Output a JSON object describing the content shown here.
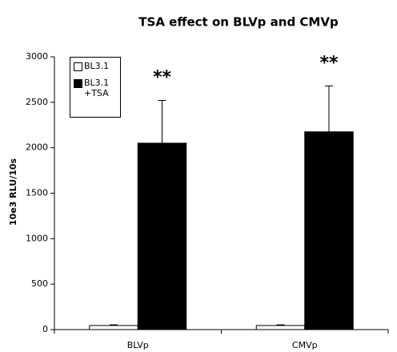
{
  "chart_data": {
    "type": "bar",
    "title": "TSA effect on BLVp and CMVp",
    "y_label": "10e3 RLU/10s",
    "categories": [
      "BLVp",
      "CMVp"
    ],
    "series": [
      {
        "name": "BL3.1",
        "color": "#ffffff",
        "values": [
          45,
          45
        ],
        "errors": [
          8,
          8
        ]
      },
      {
        "name": "BL3.1 +TSA",
        "color": "#000000",
        "values": [
          2050,
          2175
        ],
        "errors": [
          470,
          505
        ]
      }
    ],
    "annotations": [
      "**",
      "**"
    ],
    "ylim": [
      0,
      3000
    ],
    "yticks": [
      0,
      500,
      1000,
      1500,
      2000,
      2500,
      3000
    ],
    "grid": false,
    "legend": "upper left"
  }
}
